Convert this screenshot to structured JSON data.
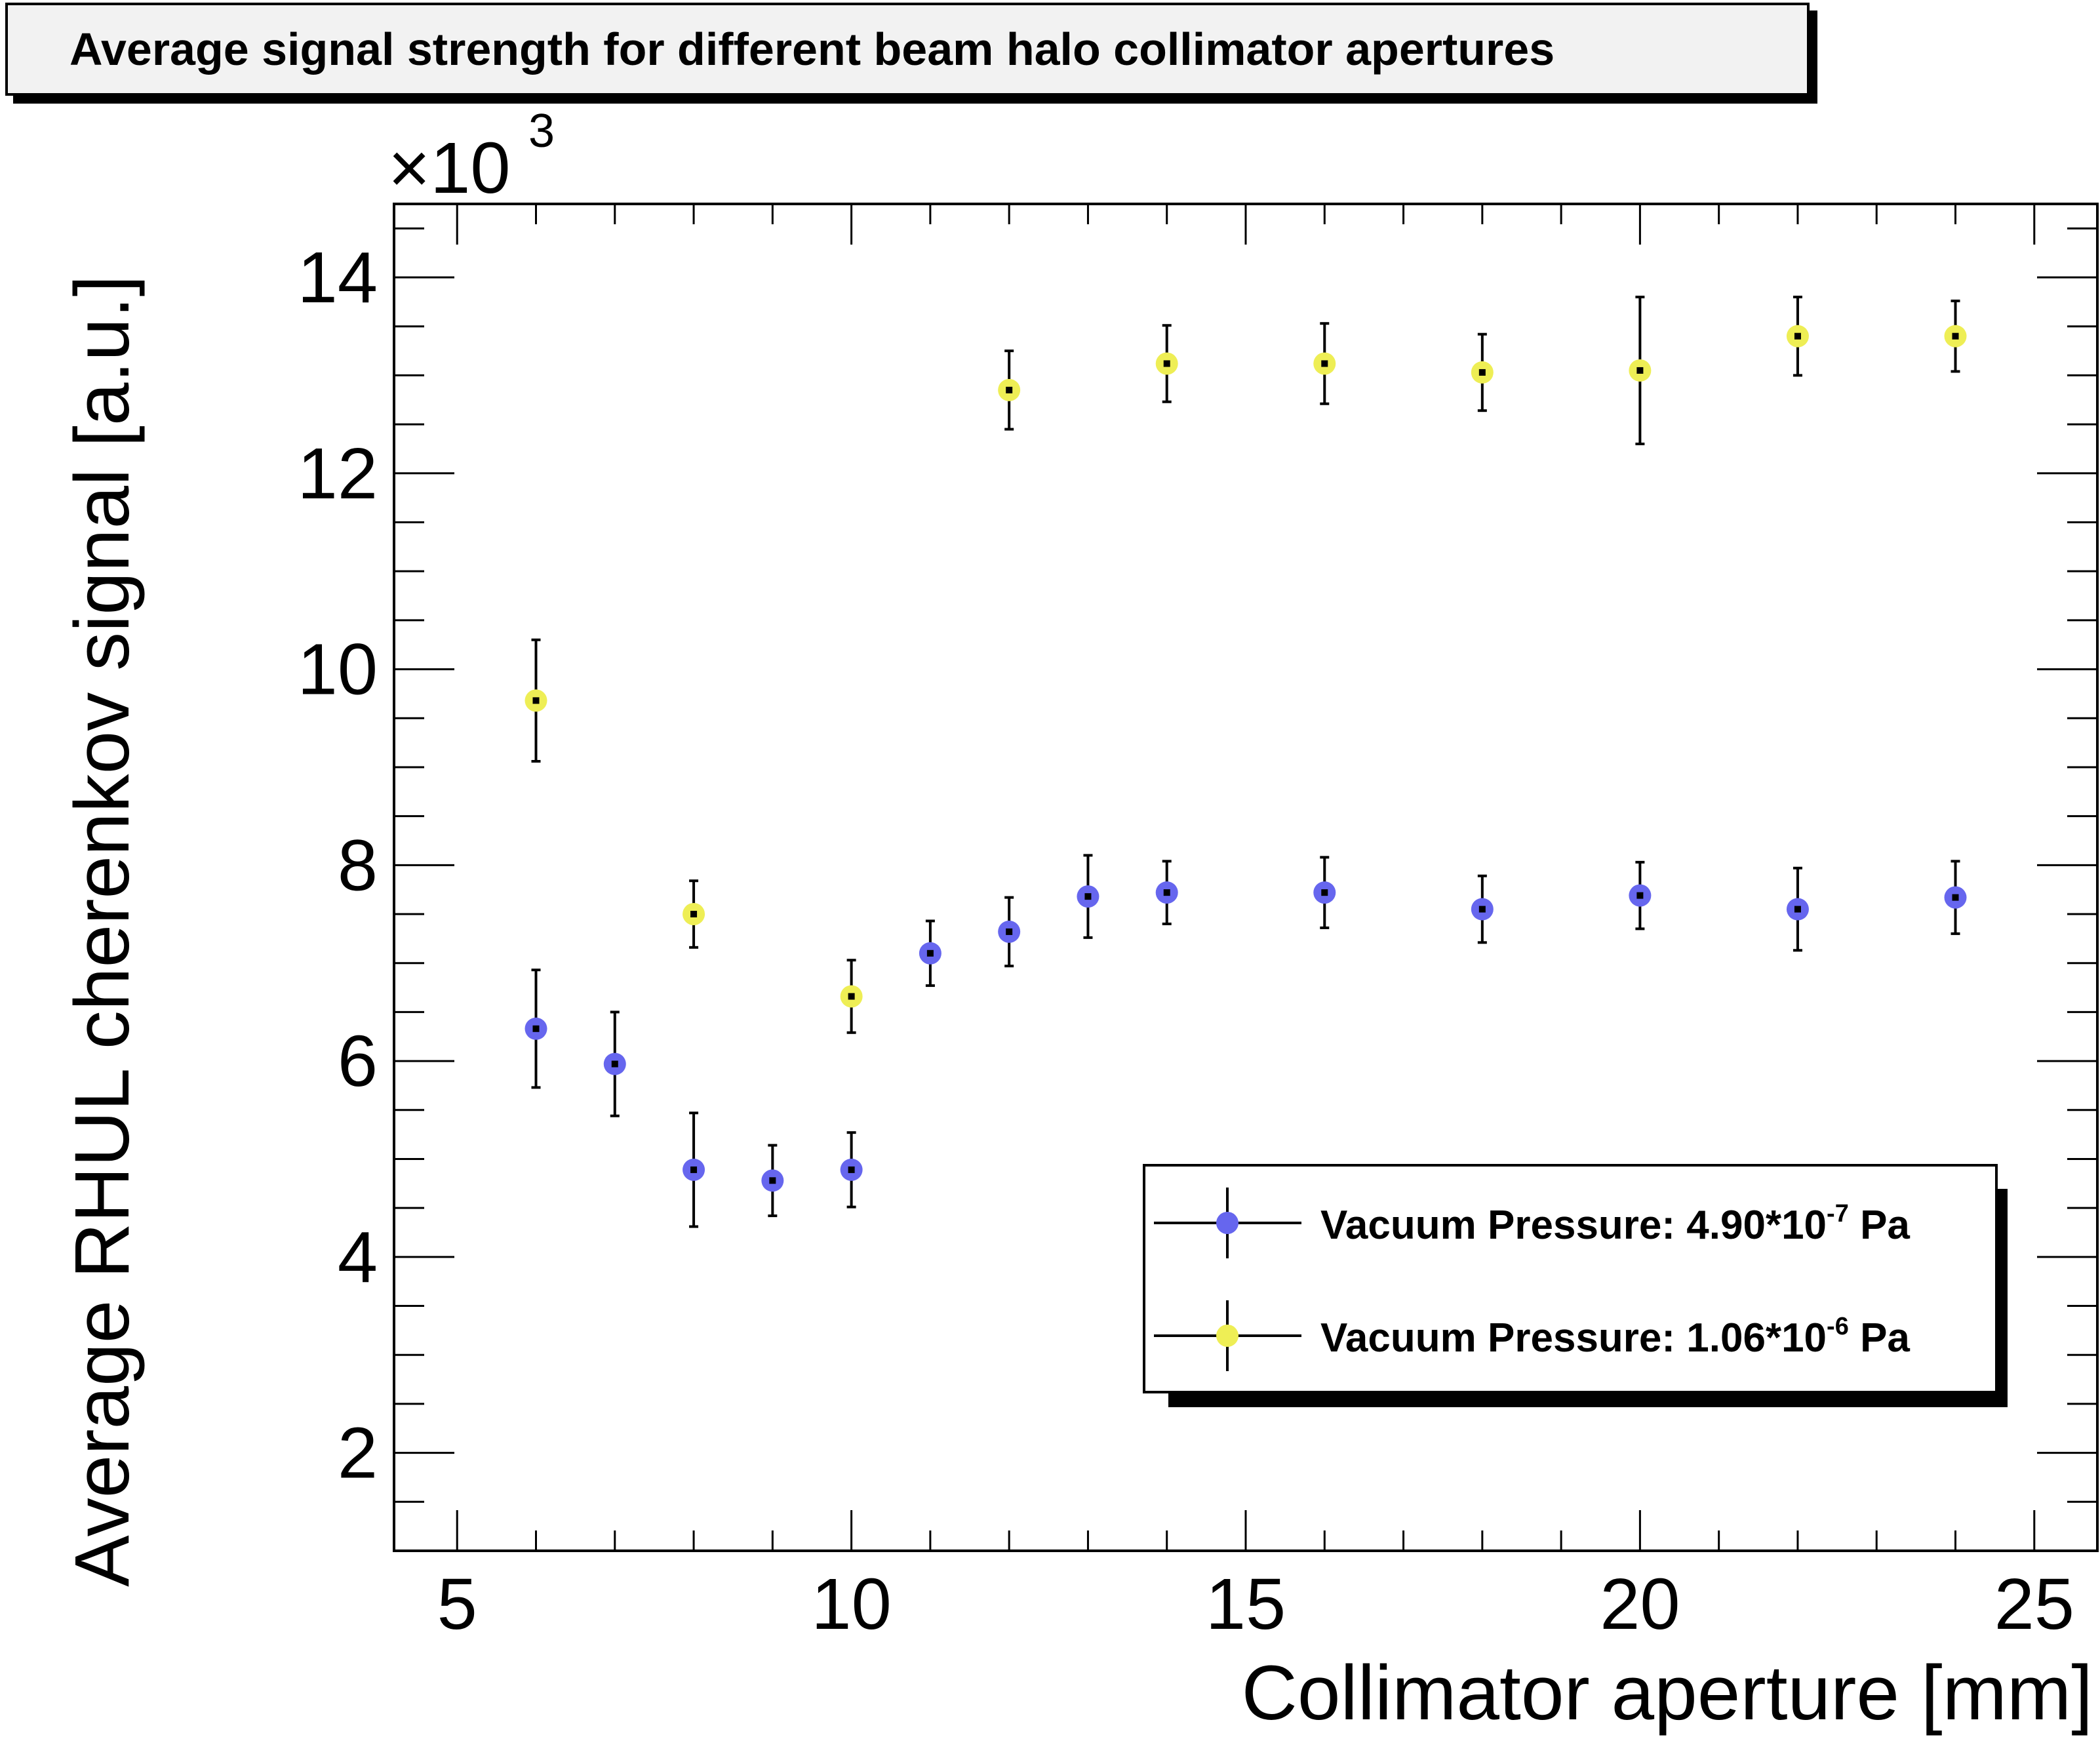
{
  "title": "Average signal strength for different beam halo collimator apertures",
  "chart_data": {
    "type": "scatter",
    "title": "Average signal strength for different beam halo collimator apertures",
    "xlabel": "Collimator aperture [mm]",
    "ylabel": "Average RHUL cherenkov signal [a.u.]",
    "y_multiplier": "×10",
    "y_multiplier_exp": "3",
    "xlim": [
      4.2,
      25.8
    ],
    "ylim": [
      1.0,
      14.75
    ],
    "x_ticks": [
      5,
      10,
      15,
      20,
      25
    ],
    "y_ticks": [
      2,
      4,
      6,
      8,
      10,
      12,
      14
    ],
    "grid": false,
    "legend_position": "bottom-right",
    "series": [
      {
        "name": "Vacuum Pressure: 4.90*10-7 Pa",
        "legend_prefix": "Vacuum Pressure: 4.90*10",
        "legend_exp": "-7",
        "legend_suffix": " Pa",
        "color": "#6666ee",
        "x": [
          6,
          7,
          8,
          9,
          10,
          11,
          12,
          13,
          14,
          16,
          18,
          20,
          22,
          24
        ],
        "y": [
          6.33,
          5.97,
          4.89,
          4.78,
          4.89,
          7.1,
          7.32,
          7.68,
          7.72,
          7.72,
          7.55,
          7.69,
          7.55,
          7.67
        ],
        "err": [
          0.6,
          0.53,
          0.58,
          0.36,
          0.38,
          0.33,
          0.35,
          0.42,
          0.32,
          0.36,
          0.34,
          0.34,
          0.42,
          0.37
        ]
      },
      {
        "name": "Vacuum Pressure: 1.06*10-6 Pa",
        "legend_prefix": "Vacuum Pressure: 1.06*10",
        "legend_exp": "-6",
        "legend_suffix": " Pa",
        "color": "#eeee55",
        "x": [
          6,
          8,
          10,
          12,
          14,
          16,
          18,
          20,
          22,
          24
        ],
        "y": [
          9.68,
          7.5,
          6.66,
          12.85,
          13.12,
          13.12,
          13.03,
          13.05,
          13.4,
          13.4
        ],
        "err": [
          0.62,
          0.34,
          0.37,
          0.4,
          0.39,
          0.41,
          0.39,
          0.75,
          0.4,
          0.36
        ]
      }
    ]
  }
}
